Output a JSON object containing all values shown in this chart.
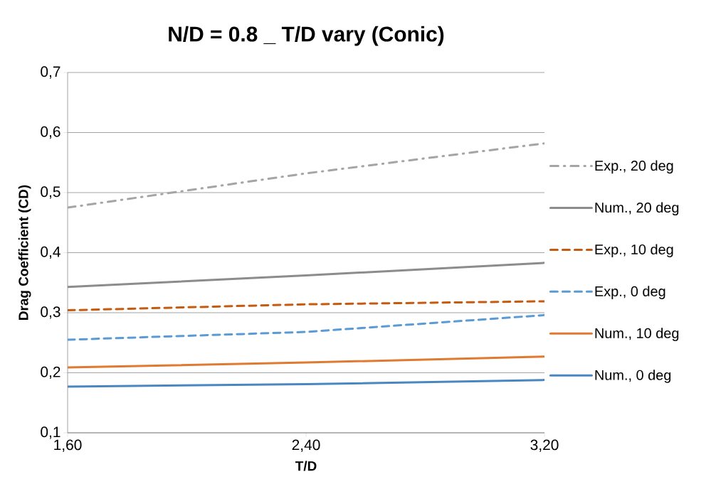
{
  "chart_data": {
    "type": "line",
    "title": "N/D = 0.8 _ T/D vary (Conic)",
    "xlabel": "T/D",
    "ylabel": "Drag Coefficient (CD)",
    "x": [
      1.6,
      2.4,
      3.2
    ],
    "series": [
      {
        "name": "Exp., 20 deg",
        "color": "#a5a5a5",
        "line_style": "dashdot",
        "values": [
          0.475,
          0.532,
          0.582
        ]
      },
      {
        "name": "Num., 20 deg",
        "color": "#8c8c8c",
        "line_style": "solid",
        "values": [
          0.343,
          0.362,
          0.383
        ]
      },
      {
        "name": "Exp., 10 deg",
        "color": "#c55a11",
        "line_style": "dashed",
        "values": [
          0.304,
          0.314,
          0.319
        ]
      },
      {
        "name": "Exp., 0 deg",
        "color": "#5b9bd5",
        "line_style": "dashed",
        "values": [
          0.255,
          0.268,
          0.296
        ]
      },
      {
        "name": "Num., 10 deg",
        "color": "#e07a30",
        "line_style": "solid",
        "values": [
          0.209,
          0.217,
          0.227
        ]
      },
      {
        "name": "Num., 0 deg",
        "color": "#4a86c0",
        "line_style": "solid",
        "values": [
          0.177,
          0.181,
          0.188
        ]
      }
    ],
    "xlim": [
      1.6,
      3.2
    ],
    "xticks": [
      {
        "value": 1.6,
        "label": "1,60"
      },
      {
        "value": 2.4,
        "label": "2,40"
      },
      {
        "value": 3.2,
        "label": "3,20"
      }
    ],
    "ylim": [
      0.1,
      0.7
    ],
    "yticks": [
      {
        "value": 0.1,
        "label": "0,1"
      },
      {
        "value": 0.2,
        "label": "0,2"
      },
      {
        "value": 0.3,
        "label": "0,3"
      },
      {
        "value": 0.4,
        "label": "0,4"
      },
      {
        "value": 0.5,
        "label": "0,5"
      },
      {
        "value": 0.6,
        "label": "0,6"
      },
      {
        "value": 0.7,
        "label": "0,7"
      }
    ],
    "grid": "y",
    "legend": "right",
    "marker": "none"
  }
}
